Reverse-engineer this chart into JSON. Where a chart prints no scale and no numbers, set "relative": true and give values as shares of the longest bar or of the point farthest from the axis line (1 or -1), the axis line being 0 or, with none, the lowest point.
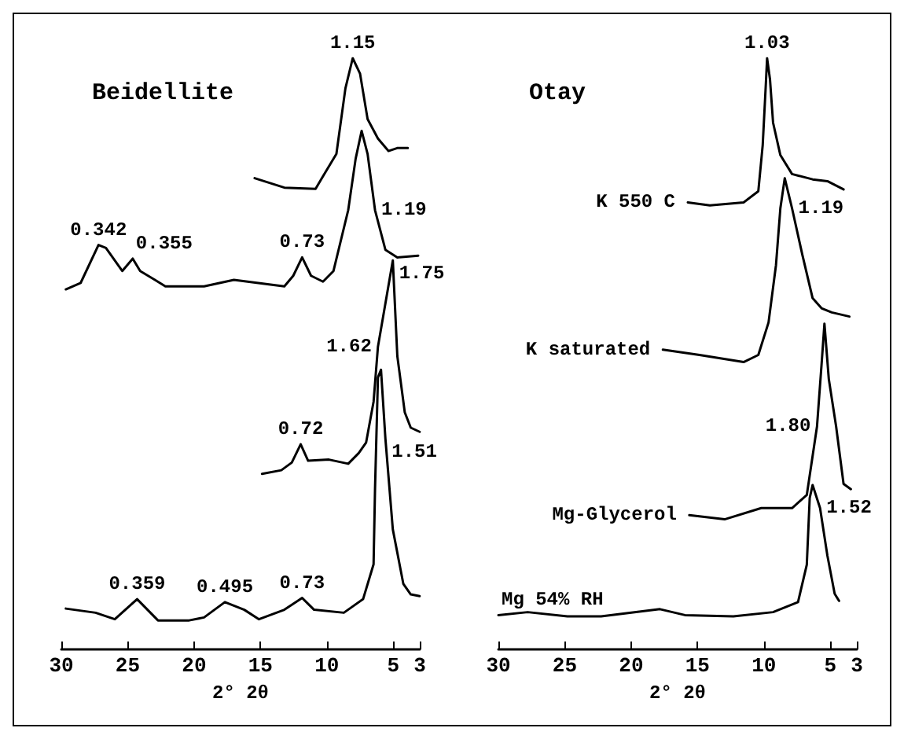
{
  "chart_data": [
    {
      "type": "line",
      "title": "Beidellite",
      "xlabel": "2° 2θ",
      "relative": true,
      "xlim": [
        30,
        3
      ],
      "xticks": [
        30,
        25,
        20,
        15,
        10,
        5,
        3
      ],
      "series": [
        {
          "color": "#000000",
          "x": [
            15.44,
            13.2,
            10.85,
            10.3,
            9.28,
            8.6,
            8.05,
            7.5,
            6.93,
            6.15,
            5.36,
            4.7,
            3.9
          ],
          "values": [
            0.797,
            0.781,
            0.779,
            0.8,
            0.838,
            0.949,
            1.0,
            0.974,
            0.897,
            0.864,
            0.843,
            0.848,
            0.848
          ]
        },
        {
          "color": "#000000",
          "x": [
            29.66,
            28.54,
            27.2,
            26.64,
            25.41,
            24.62,
            24.06,
            22.95,
            22.16,
            19.25,
            17.0,
            13.2,
            12.53,
            11.86,
            11.19,
            10.29,
            9.5,
            8.39,
            7.83,
            7.38,
            6.93,
            6.37,
            5.59,
            4.69,
            3.12
          ],
          "values": [
            0.609,
            0.62,
            0.684,
            0.679,
            0.64,
            0.661,
            0.64,
            0.625,
            0.614,
            0.614,
            0.625,
            0.614,
            0.632,
            0.663,
            0.632,
            0.622,
            0.64,
            0.743,
            0.83,
            0.877,
            0.838,
            0.743,
            0.676,
            0.663,
            0.666
          ]
        },
        {
          "color": "#000000",
          "x": [
            14.88,
            13.43,
            12.64,
            11.97,
            11.41,
            9.84,
            8.39,
            7.6,
            7.04,
            6.48,
            6.15,
            5.03,
            4.69,
            4.13,
            3.68,
            3.01
          ],
          "values": [
            0.297,
            0.303,
            0.316,
            0.347,
            0.319,
            0.321,
            0.314,
            0.332,
            0.35,
            0.419,
            0.512,
            0.658,
            0.496,
            0.401,
            0.375,
            0.368
          ]
        },
        {
          "color": "#000000",
          "x": [
            29.66,
            27.42,
            25.97,
            24.29,
            22.72,
            20.37,
            19.25,
            17.68,
            16.22,
            15.11,
            13.2,
            11.86,
            10.96,
            8.72,
            7.27,
            6.48,
            6.37,
            6.15,
            5.92,
            5.59,
            5.03,
            4.24,
            3.68,
            3.01
          ],
          "values": [
            0.069,
            0.062,
            0.051,
            0.085,
            0.049,
            0.049,
            0.054,
            0.08,
            0.067,
            0.051,
            0.067,
            0.087,
            0.067,
            0.062,
            0.085,
            0.144,
            0.272,
            0.46,
            0.473,
            0.357,
            0.203,
            0.111,
            0.093,
            0.09
          ]
        }
      ],
      "annotations": [
        {
          "text": "1.15",
          "x": 8.05,
          "y": 1.0
        },
        {
          "text": "1.19",
          "x": 6.37,
          "y": 0.743
        },
        {
          "text": "0.342",
          "x": 27.2,
          "y": 0.684
        },
        {
          "text": "0.355",
          "x": 24.62,
          "y": 0.661
        },
        {
          "text": "0.73",
          "x": 11.86,
          "y": 0.663
        },
        {
          "text": "1.75",
          "x": 5.03,
          "y": 0.658
        },
        {
          "text": "1.62",
          "x": 6.15,
          "y": 0.512
        },
        {
          "text": "0.72",
          "x": 11.97,
          "y": 0.347
        },
        {
          "text": "1.51",
          "x": 5.59,
          "y": 0.357
        },
        {
          "text": "0.359",
          "x": 24.29,
          "y": 0.085
        },
        {
          "text": "0.495",
          "x": 17.68,
          "y": 0.08
        },
        {
          "text": "0.73",
          "x": 11.86,
          "y": 0.087
        }
      ]
    },
    {
      "type": "line",
      "title": "Otay",
      "xlabel": "2° 2θ",
      "relative": true,
      "xlim": [
        30,
        3
      ],
      "xticks": [
        30,
        25,
        20,
        15,
        10,
        5,
        3
      ],
      "series": [
        {
          "name": "K 550 C",
          "color": "#000000",
          "x": [
            15.73,
            14.07,
            11.53,
            10.42,
            10.09,
            9.87,
            9.76,
            9.54,
            9.31,
            8.76,
            7.88,
            6.33,
            5.22,
            4.0
          ],
          "values": [
            0.756,
            0.751,
            0.756,
            0.775,
            0.853,
            0.949,
            1.0,
            0.964,
            0.891,
            0.836,
            0.804,
            0.795,
            0.792,
            0.778
          ]
        },
        {
          "name": "K saturated",
          "color": "#000000",
          "x": [
            17.61,
            14.85,
            11.53,
            10.42,
            9.65,
            9.09,
            8.76,
            8.43,
            7.88,
            7.1,
            6.33,
            5.66,
            4.89,
            3.56
          ],
          "values": [
            0.507,
            0.498,
            0.486,
            0.498,
            0.553,
            0.65,
            0.746,
            0.797,
            0.746,
            0.667,
            0.594,
            0.577,
            0.57,
            0.563
          ]
        },
        {
          "name": "Mg-Glycerol",
          "color": "#000000",
          "x": [
            15.62,
            12.96,
            10.2,
            7.88,
            6.77,
            6.0,
            5.66,
            5.44,
            5.11,
            4.56,
            4.0,
            3.45
          ],
          "values": [
            0.227,
            0.22,
            0.239,
            0.239,
            0.261,
            0.377,
            0.481,
            0.551,
            0.457,
            0.377,
            0.28,
            0.271
          ]
        },
        {
          "name": "Mg 54% RH",
          "color": "#000000",
          "x": [
            30.0,
            27.79,
            24.8,
            22.26,
            17.83,
            15.95,
            12.3,
            9.31,
            7.43,
            6.77,
            6.55,
            6.33,
            5.77,
            5.22,
            4.67,
            4.34
          ],
          "values": [
            0.058,
            0.063,
            0.056,
            0.056,
            0.068,
            0.058,
            0.056,
            0.063,
            0.08,
            0.143,
            0.256,
            0.278,
            0.239,
            0.159,
            0.094,
            0.082
          ]
        }
      ],
      "annotations": [
        {
          "text": "1.03",
          "x": 9.76,
          "y": 1.0
        },
        {
          "text": "1.19",
          "x": 7.88,
          "y": 0.746
        },
        {
          "text": "1.80",
          "x": 6.0,
          "y": 0.377
        },
        {
          "text": "1.52",
          "x": 5.77,
          "y": 0.239
        }
      ]
    }
  ]
}
